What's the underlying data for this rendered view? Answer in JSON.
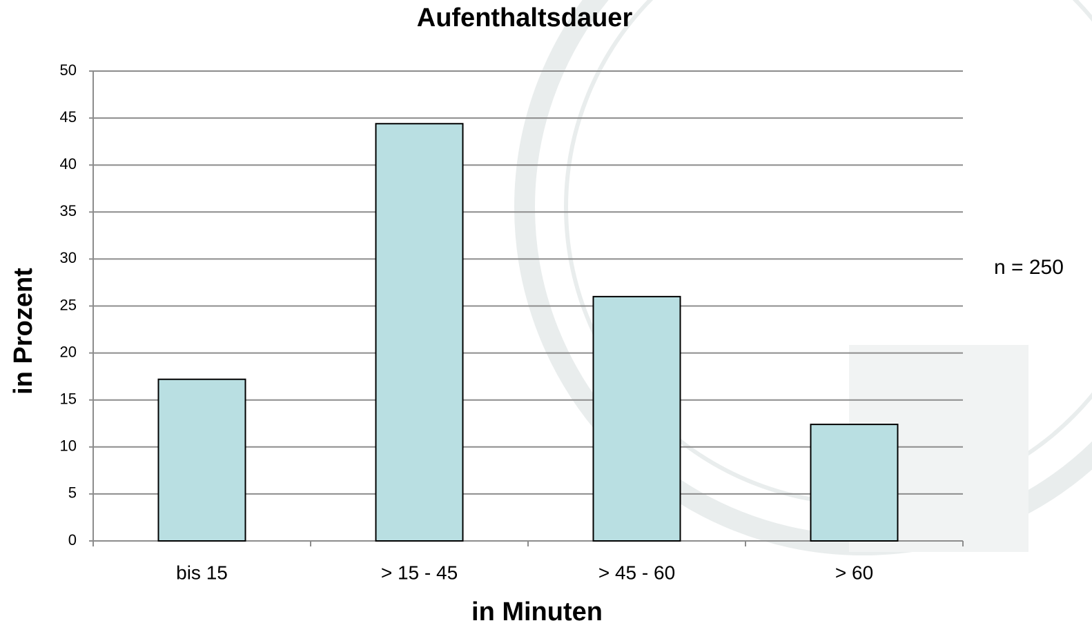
{
  "chart_data": {
    "type": "bar",
    "title": "Aufenthaltsdauer",
    "x_label": "in Minuten",
    "y_label": "in Prozent",
    "annotation": "n = 250",
    "categories": [
      "bis 15",
      "> 15 - 45",
      "> 45 - 60",
      "> 60"
    ],
    "values": [
      17.2,
      44.4,
      26.0,
      12.4
    ],
    "color": "#b9dfe2",
    "ylim": [
      0,
      50
    ],
    "yticks": [
      0,
      5,
      10,
      15,
      20,
      25,
      30,
      35,
      40,
      45,
      50
    ],
    "grid": true
  }
}
